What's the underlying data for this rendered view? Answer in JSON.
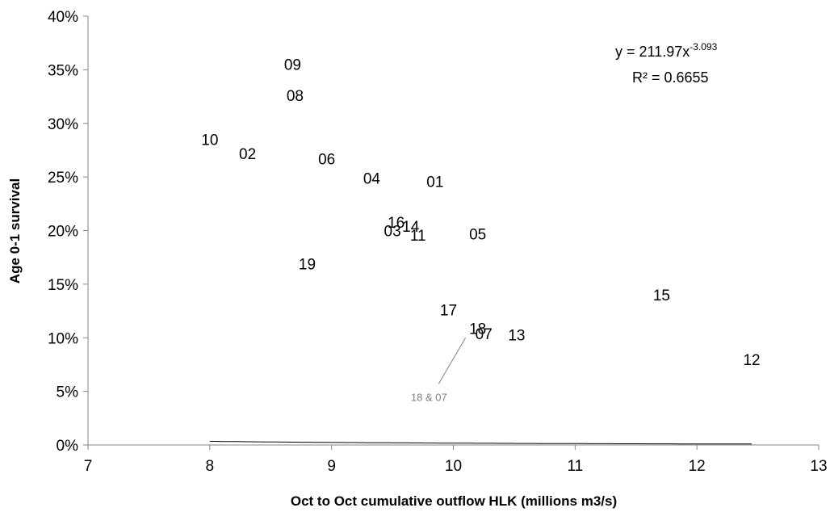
{
  "chart_data": {
    "type": "scatter",
    "xlabel": "Oct to Oct cumulative outflow HLK (millions m3/s)",
    "ylabel": "Age 0-1 survival",
    "xlim": [
      7,
      13
    ],
    "ylim": [
      0,
      0.4
    ],
    "x_ticks": [
      "7",
      "8",
      "9",
      "10",
      "11",
      "12",
      "13"
    ],
    "y_ticks": [
      "0%",
      "5%",
      "10%",
      "15%",
      "20%",
      "25%",
      "30%",
      "35%",
      "40%"
    ],
    "grid": false,
    "points": [
      {
        "label": "09",
        "x": 8.68,
        "y": 0.355
      },
      {
        "label": "08",
        "x": 8.7,
        "y": 0.326
      },
      {
        "label": "10",
        "x": 8.0,
        "y": 0.285
      },
      {
        "label": "02",
        "x": 8.31,
        "y": 0.272
      },
      {
        "label": "06",
        "x": 8.96,
        "y": 0.267
      },
      {
        "label": "04",
        "x": 9.33,
        "y": 0.249
      },
      {
        "label": "01",
        "x": 9.85,
        "y": 0.246
      },
      {
        "label": "16",
        "x": 9.53,
        "y": 0.208
      },
      {
        "label": "14",
        "x": 9.65,
        "y": 0.204
      },
      {
        "label": "03",
        "x": 9.5,
        "y": 0.2
      },
      {
        "label": "11",
        "x": 9.71,
        "y": 0.196
      },
      {
        "label": "05",
        "x": 10.2,
        "y": 0.197
      },
      {
        "label": "19",
        "x": 8.8,
        "y": 0.169
      },
      {
        "label": "15",
        "x": 11.71,
        "y": 0.14
      },
      {
        "label": "17",
        "x": 9.96,
        "y": 0.126
      },
      {
        "label": "18",
        "x": 10.2,
        "y": 0.109
      },
      {
        "label": "07",
        "x": 10.25,
        "y": 0.104
      },
      {
        "label": "13",
        "x": 10.52,
        "y": 0.103
      },
      {
        "label": "12",
        "x": 12.45,
        "y": 0.08
      }
    ],
    "trendline": {
      "type": "power",
      "a": 211.97,
      "b": -3.093,
      "equation_prefix": "y = 211.97x",
      "equation_exponent": "-3.093",
      "r_squared": "R² = 0.6655"
    },
    "annotation": {
      "text": "18 & 07",
      "x": 9.8,
      "y": 0.045,
      "points_to": {
        "x": 10.1,
        "y": 0.1
      }
    }
  }
}
